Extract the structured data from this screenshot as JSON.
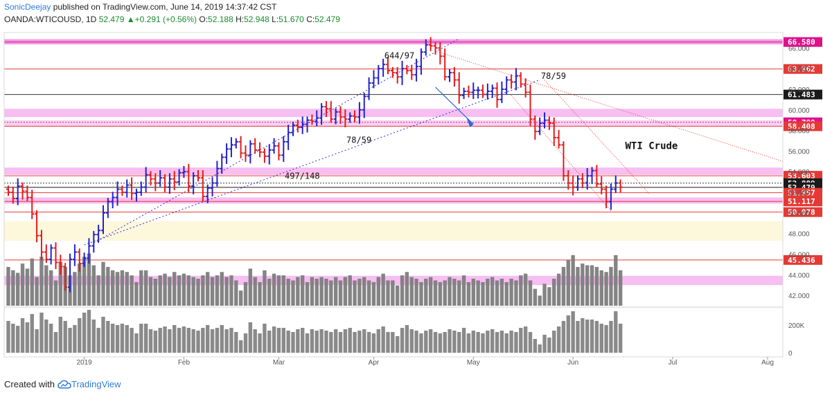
{
  "header": {
    "line1": {
      "user": "SonicDeejay",
      "rest": " published on TradingView.com, June 14, 2019 14:37:42 CST"
    },
    "line2": {
      "symbol": "OANDA:WTICOUSD, 1D",
      "last": "52.479",
      "change": "+0.291 (+0.56%)",
      "o_label": "O:",
      "o": "52.188",
      "h_label": "H:",
      "h": "52.948",
      "l_label": "L:",
      "l": "51.670",
      "c_label": "C:",
      "c": "52.479"
    }
  },
  "footer": {
    "created_with": "Created with",
    "brand": "TradingView"
  },
  "chart_data": {
    "type": "ohlc",
    "symbol": "OANDA:WTICOUSD",
    "interval": "1D",
    "x_labels": [
      "2019",
      "Feb",
      "Mar",
      "Apr",
      "May",
      "Jun",
      "Jul",
      "Aug"
    ],
    "price_ticks": [
      "66.000",
      "64.000",
      "62.000",
      "60.000",
      "58.000",
      "56.000",
      "54.000",
      "52.000",
      "50.000",
      "48.000",
      "46.000",
      "44.000",
      "42.000"
    ],
    "price_range": [
      41.0,
      67.5
    ],
    "volume_ticks": [
      "200K",
      "0"
    ],
    "volume_range": [
      0,
      320
    ],
    "levels": [
      {
        "price": 66.58,
        "label": "66.580",
        "color": "#e0118a",
        "fill": "#e0118a"
      },
      {
        "price": 63.962,
        "label": "63.962",
        "color": "#e53935",
        "fill": "#e53935"
      },
      {
        "price": 61.483,
        "label": "61.483",
        "color": "#333333",
        "fill": "#1a1a1a"
      },
      {
        "price": 58.789,
        "label": "58.789",
        "color": "#e0118a",
        "fill": "#e0118a",
        "dotted": true
      },
      {
        "price": 58.408,
        "label": "58.408",
        "color": "#e53935",
        "fill": "#e53935"
      },
      {
        "price": 53.603,
        "label": "53.603",
        "color": "#e53935",
        "fill": "#e53935"
      },
      {
        "price": 52.889,
        "label": "52.889",
        "color": "#333333",
        "fill": "#1a1a1a",
        "dotted": true
      },
      {
        "price": 52.479,
        "label": "52.479",
        "color": "#1a1a1a",
        "fill": "#1a1a1a"
      },
      {
        "price": 51.957,
        "label": "51.957",
        "color": "#e53935",
        "fill": "#e53935"
      },
      {
        "price": 51.117,
        "label": "51.117",
        "color": "#e53935",
        "fill": "#e53935"
      },
      {
        "price": 50.078,
        "label": "50.078",
        "color": "#e53935",
        "fill": "#e53935"
      },
      {
        "price": 45.436,
        "label": "45.436",
        "color": "#e53935",
        "fill": "#e53935"
      }
    ],
    "zones": [
      {
        "from": 66.35,
        "to": 66.85,
        "color": "#ee88dd"
      },
      {
        "from": 59.3,
        "to": 60.1,
        "color": "#f6b3ef"
      },
      {
        "from": 58.4,
        "to": 59.0,
        "color": "#f7c9f2"
      },
      {
        "from": 53.7,
        "to": 54.4,
        "color": "#f6b3ef"
      },
      {
        "from": 50.9,
        "to": 51.5,
        "color": "#f6b3ef"
      },
      {
        "from": 47.3,
        "to": 49.2,
        "color": "#fdf6d6"
      },
      {
        "from": 43.0,
        "to": 43.9,
        "color": "#f6b3ef"
      }
    ],
    "annotations": [
      {
        "text": "644/97",
        "date": 81,
        "price": 65.0
      },
      {
        "text": "78/59",
        "date": 114,
        "price": 63.0
      },
      {
        "text": "78/59",
        "date": 73,
        "price": 56.8
      },
      {
        "text": "497/148",
        "date": 60,
        "price": 53.3
      },
      {
        "text": "WTI Crude",
        "date": 130,
        "price": 56.2,
        "big": true
      }
    ],
    "first_date": "2018-12-10",
    "last_date": "2019-06-14",
    "closes": [
      52.0,
      51.4,
      52.6,
      52.1,
      51.5,
      49.9,
      47.8,
      46.2,
      45.5,
      46.6,
      45.2,
      44.8,
      42.8,
      45.5,
      46.2,
      45.1,
      45.6,
      46.8,
      47.9,
      48.3,
      50.0,
      51.1,
      51.5,
      52.3,
      52.0,
      52.7,
      51.9,
      52.0,
      52.5,
      53.7,
      53.3,
      52.9,
      53.4,
      52.5,
      53.3,
      53.0,
      53.9,
      54.0,
      52.6,
      53.6,
      53.4,
      51.6,
      52.4,
      52.9,
      54.3,
      55.4,
      56.2,
      56.6,
      56.9,
      55.8,
      55.6,
      56.7,
      56.1,
      55.9,
      55.5,
      56.1,
      56.5,
      55.6,
      56.9,
      57.8,
      58.5,
      58.3,
      58.6,
      59.0,
      58.9,
      59.2,
      60.3,
      60.1,
      59.1,
      59.8,
      59.3,
      59.1,
      59.4,
      59.3,
      60.0,
      61.3,
      62.6,
      63.1,
      64.0,
      64.4,
      63.8,
      63.6,
      63.2,
      64.0,
      63.8,
      63.4,
      64.2,
      65.6,
      66.3,
      66.2,
      66.0,
      65.2,
      63.2,
      63.6,
      62.9,
      61.4,
      61.8,
      61.7,
      61.9,
      61.9,
      61.5,
      61.8,
      62.1,
      61.0,
      62.0,
      62.9,
      62.7,
      63.3,
      62.5,
      61.7,
      59.1,
      57.9,
      58.7,
      59.0,
      58.7,
      57.3,
      56.6,
      53.6,
      52.9,
      52.5,
      53.3,
      52.9,
      53.6,
      54.1,
      52.8,
      52.3,
      51.1,
      52.3,
      52.9,
      52.5
    ],
    "volumes": [
      230,
      210,
      195,
      250,
      220,
      280,
      170,
      290,
      240,
      210,
      150,
      260,
      230,
      180,
      200,
      250,
      290,
      310,
      240,
      180,
      260,
      230,
      210,
      200,
      210,
      200,
      180,
      140,
      210,
      210,
      170,
      160,
      180,
      190,
      170,
      200,
      180,
      190,
      180,
      170,
      160,
      180,
      200,
      170,
      180,
      200,
      170,
      180,
      150,
      90,
      140,
      220,
      170,
      140,
      210,
      160,
      190,
      180,
      180,
      160,
      150,
      170,
      180,
      140,
      170,
      160,
      170,
      160,
      150,
      170,
      150,
      170,
      180,
      150,
      160,
      170,
      150,
      140,
      170,
      190,
      150,
      150,
      120,
      180,
      200,
      170,
      160,
      140,
      160,
      170,
      150,
      140,
      150,
      170,
      160,
      150,
      180,
      140,
      160,
      150,
      140,
      160,
      170,
      150,
      160,
      140,
      160,
      150,
      180,
      190,
      150,
      100,
      60,
      130,
      110,
      160,
      190,
      230,
      270,
      300,
      230,
      250,
      240,
      240,
      230,
      210,
      200,
      230,
      300,
      210
    ]
  }
}
